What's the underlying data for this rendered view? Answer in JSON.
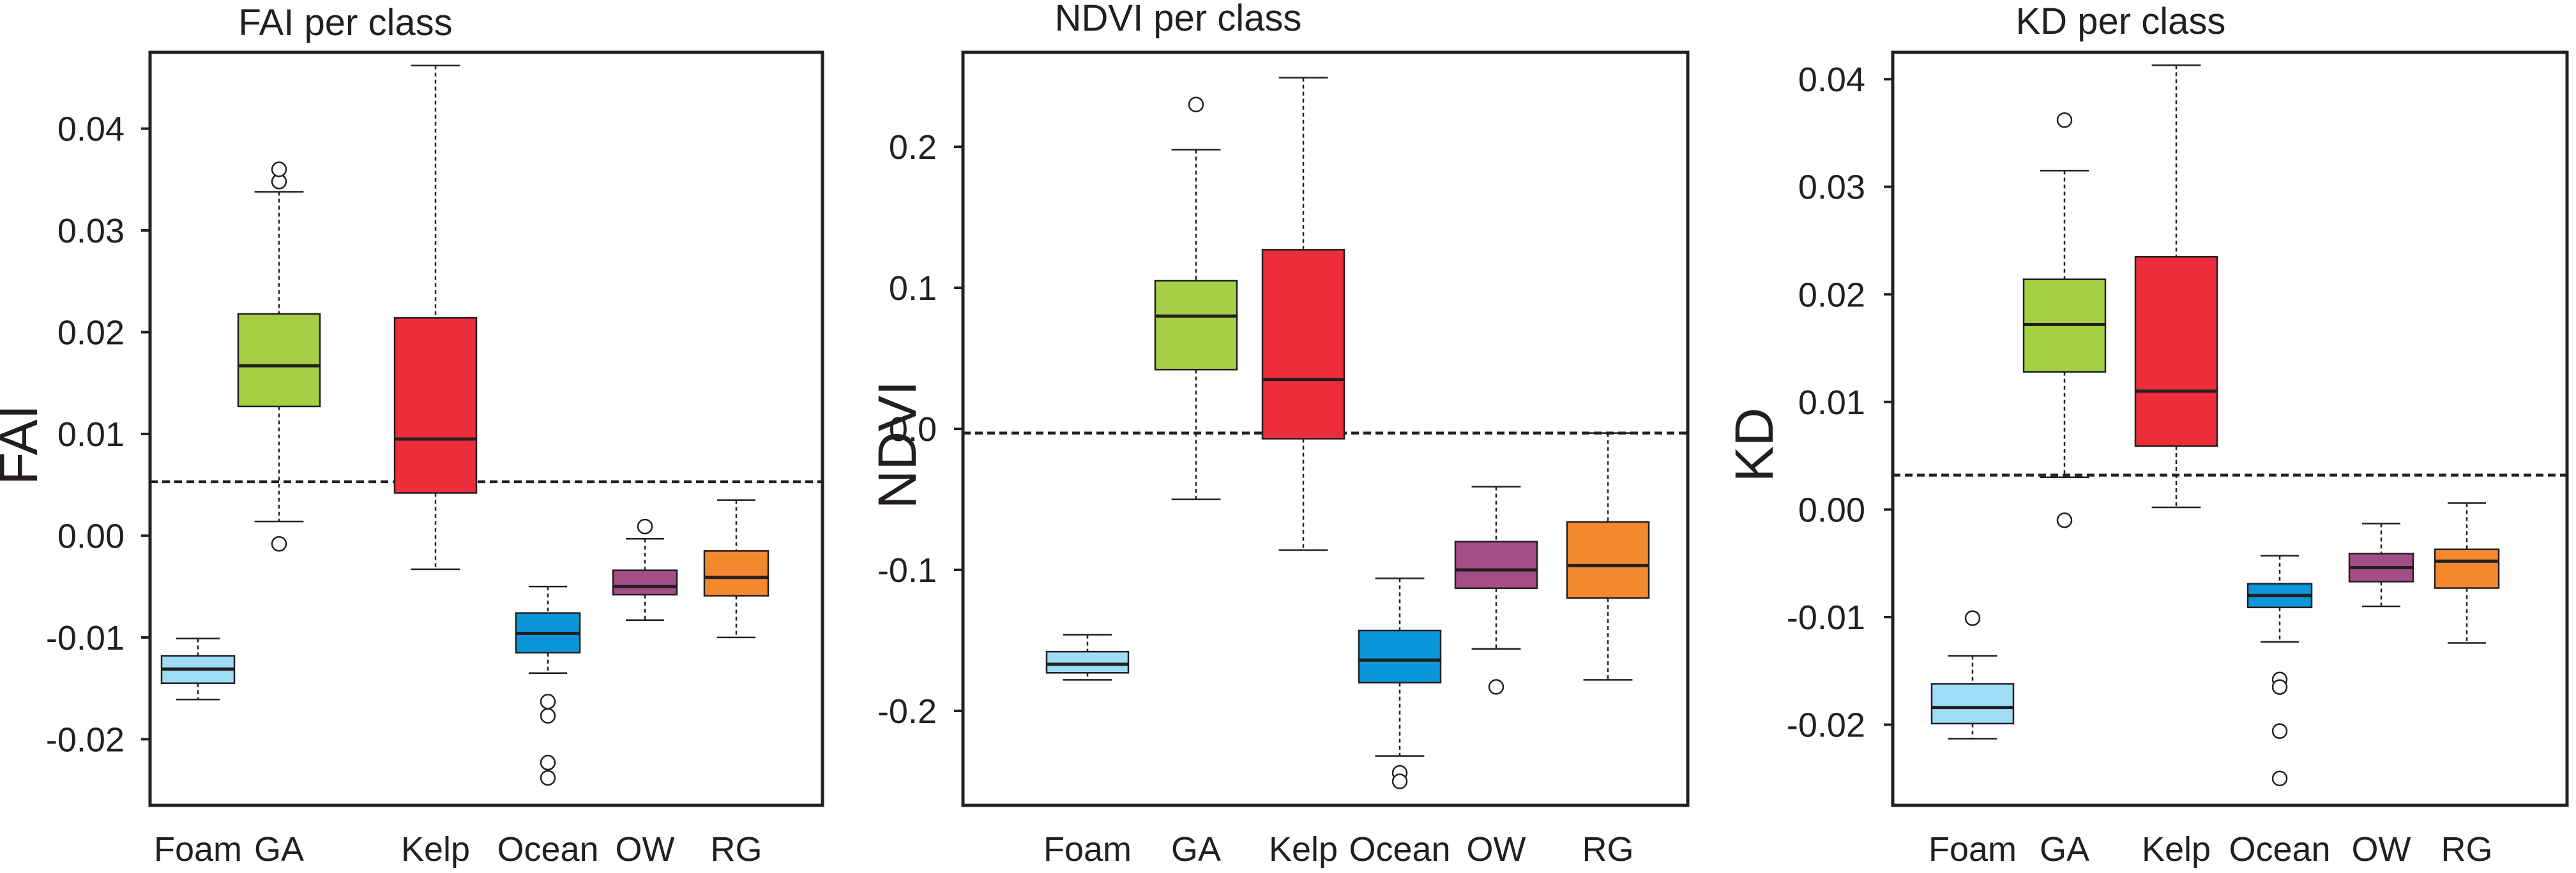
{
  "colors": {
    "Foam": "#9fdcf6",
    "GA": "#a4cf45",
    "Kelp": "#ec2d3a",
    "Ocean": "#0a96d8",
    "OW": "#a54d87",
    "RG": "#f3882f"
  },
  "chart_data": [
    {
      "type": "box",
      "title": "FAI per class",
      "ylabel": "FAI",
      "categories": [
        "Foam",
        "GA",
        "Kelp",
        "Ocean",
        "OW",
        "RG"
      ],
      "ylim": [
        -0.0265,
        0.0475
      ],
      "yticks": [
        -0.02,
        -0.01,
        0.0,
        0.01,
        0.02,
        0.03,
        0.04
      ],
      "ytick_labels": [
        "-0.02",
        "-0.01",
        "0.00",
        "0.01",
        "0.02",
        "0.03",
        "0.04"
      ],
      "threshold": 0.0053,
      "boxes": [
        {
          "category": "Foam",
          "whislo": -0.0161,
          "q1": -0.0145,
          "med": -0.0131,
          "q3": -0.0118,
          "whishi": -0.0101,
          "fliers": []
        },
        {
          "category": "GA",
          "whislo": 0.0014,
          "q1": 0.0127,
          "med": 0.0167,
          "q3": 0.0218,
          "whishi": 0.0338,
          "fliers": [
            0.0348,
            0.036,
            -0.0008
          ]
        },
        {
          "category": "Kelp",
          "whislo": -0.0033,
          "q1": 0.0042,
          "med": 0.0095,
          "q3": 0.0214,
          "whishi": 0.0462,
          "fliers": []
        },
        {
          "category": "Ocean",
          "whislo": -0.0135,
          "q1": -0.0115,
          "med": -0.0096,
          "q3": -0.0076,
          "whishi": -0.005,
          "fliers": [
            -0.0163,
            -0.0177,
            -0.0223,
            -0.0238
          ]
        },
        {
          "category": "OW",
          "whislo": -0.0083,
          "q1": -0.0058,
          "med": -0.005,
          "q3": -0.0034,
          "whishi": -0.0003,
          "fliers": [
            0.0009
          ]
        },
        {
          "category": "RG",
          "whislo": -0.01,
          "q1": -0.0059,
          "med": -0.0041,
          "q3": -0.0015,
          "whishi": 0.0035,
          "fliers": []
        }
      ]
    },
    {
      "type": "box",
      "title": "NDVI per class",
      "ylabel": "NDVI",
      "categories": [
        "Foam",
        "GA",
        "Kelp",
        "Ocean",
        "OW",
        "RG"
      ],
      "ylim": [
        -0.267,
        0.267
      ],
      "yticks": [
        -0.2,
        -0.1,
        0.0,
        0.1,
        0.2
      ],
      "ytick_labels": [
        "-0.2",
        "-0.1",
        "0.0",
        "0.1",
        "0.2"
      ],
      "threshold": -0.003,
      "boxes": [
        {
          "category": "Foam",
          "whislo": -0.178,
          "q1": -0.173,
          "med": -0.167,
          "q3": -0.158,
          "whishi": -0.146,
          "fliers": []
        },
        {
          "category": "GA",
          "whislo": -0.05,
          "q1": 0.042,
          "med": 0.08,
          "q3": 0.105,
          "whishi": 0.198,
          "fliers": [
            0.23
          ]
        },
        {
          "category": "Kelp",
          "whislo": -0.086,
          "q1": -0.007,
          "med": 0.035,
          "q3": 0.127,
          "whishi": 0.249,
          "fliers": []
        },
        {
          "category": "Ocean",
          "whislo": -0.232,
          "q1": -0.18,
          "med": -0.164,
          "q3": -0.143,
          "whishi": -0.106,
          "fliers": [
            -0.244,
            -0.25
          ]
        },
        {
          "category": "OW",
          "whislo": -0.156,
          "q1": -0.113,
          "med": -0.1,
          "q3": -0.08,
          "whishi": -0.041,
          "fliers": [
            -0.183
          ]
        },
        {
          "category": "RG",
          "whislo": -0.178,
          "q1": -0.12,
          "med": -0.097,
          "q3": -0.066,
          "whishi": -0.003,
          "fliers": []
        }
      ]
    },
    {
      "type": "box",
      "title": "KD per class",
      "ylabel": "KD",
      "categories": [
        "Foam",
        "GA",
        "Kelp",
        "Ocean",
        "OW",
        "RG"
      ],
      "ylim": [
        -0.0275,
        0.0425
      ],
      "yticks": [
        -0.02,
        -0.01,
        0.0,
        0.01,
        0.02,
        0.03,
        0.04
      ],
      "ytick_labels": [
        "-0.02",
        "-0.01",
        "0.00",
        "0.01",
        "0.02",
        "0.03",
        "0.04"
      ],
      "threshold": 0.0032,
      "boxes": [
        {
          "category": "Foam",
          "whislo": -0.0213,
          "q1": -0.0199,
          "med": -0.0184,
          "q3": -0.0162,
          "whishi": -0.0136,
          "fliers": [
            -0.0101
          ]
        },
        {
          "category": "GA",
          "whislo": 0.003,
          "q1": 0.0128,
          "med": 0.0172,
          "q3": 0.0214,
          "whishi": 0.0315,
          "fliers": [
            0.0362,
            -0.001
          ]
        },
        {
          "category": "Kelp",
          "whislo": 0.0002,
          "q1": 0.0059,
          "med": 0.011,
          "q3": 0.0235,
          "whishi": 0.0413,
          "fliers": []
        },
        {
          "category": "Ocean",
          "whislo": -0.0123,
          "q1": -0.0091,
          "med": -0.008,
          "q3": -0.0069,
          "whishi": -0.0043,
          "fliers": [
            -0.0158,
            -0.0165,
            -0.0206,
            -0.025
          ]
        },
        {
          "category": "OW",
          "whislo": -0.009,
          "q1": -0.0067,
          "med": -0.0054,
          "q3": -0.0041,
          "whishi": -0.0013,
          "fliers": []
        },
        {
          "category": "RG",
          "whislo": -0.0124,
          "q1": -0.0073,
          "med": -0.0048,
          "q3": -0.0037,
          "whishi": 0.0006,
          "fliers": []
        }
      ]
    }
  ]
}
